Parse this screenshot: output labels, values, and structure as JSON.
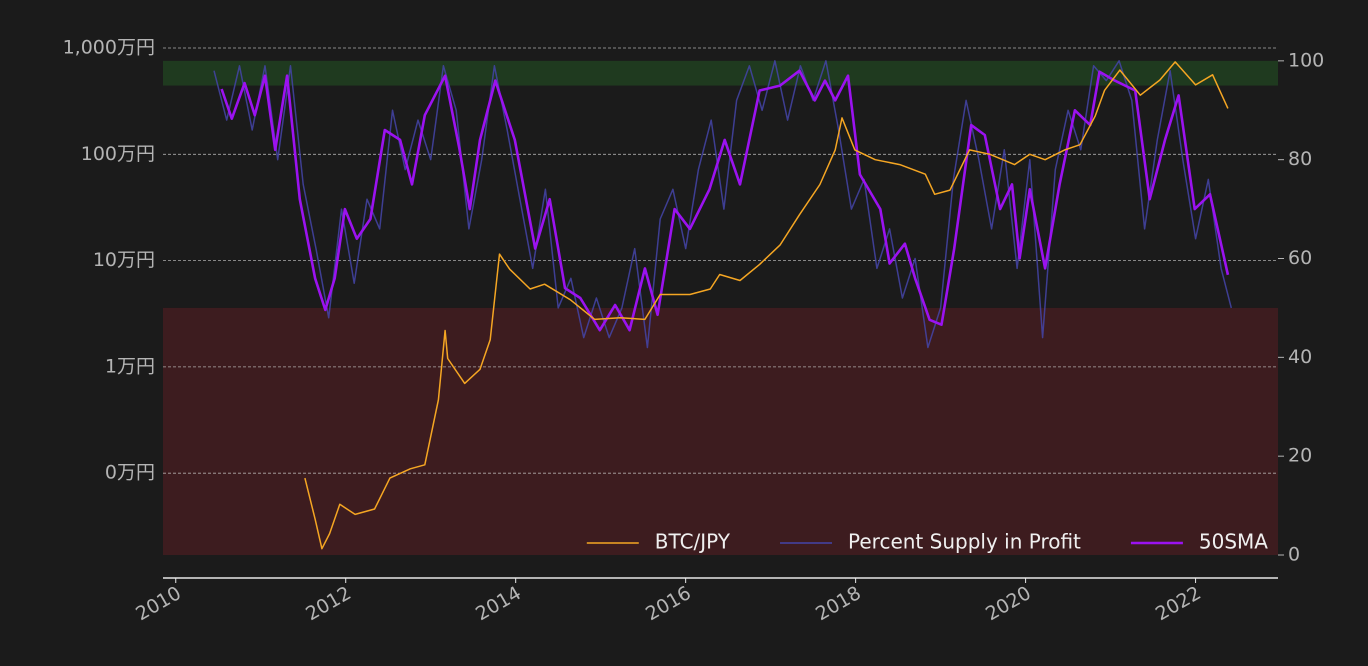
{
  "chart_data": {
    "type": "line",
    "ylog": true,
    "xlim": [
      2009.85,
      2022.97
    ],
    "xticks": [
      2010,
      2012,
      2014,
      2016,
      2018,
      2020,
      2022
    ],
    "ylim": [
      170,
      10000000
    ],
    "yticks": [
      {
        "value": 10000000,
        "label": "1,000万円"
      },
      {
        "value": 1000000,
        "label": "100万円"
      },
      {
        "value": 100000,
        "label": "10万円"
      },
      {
        "value": 10000,
        "label": "1万円"
      },
      {
        "value": 1000,
        "label": "0万円"
      }
    ],
    "y2lim": [
      0,
      102.6
    ],
    "y2ticks": [
      0,
      20,
      40,
      60,
      80,
      100
    ],
    "grid": true,
    "legend": "lower right",
    "bands": [
      {
        "y2range": [
          95,
          100
        ],
        "color": "#1f3a1f"
      },
      {
        "y2range": [
          0,
          50
        ],
        "color": "#3d1c1f"
      }
    ],
    "series": [
      {
        "name": "BTC/JPY",
        "color": "#f5a623",
        "width": 1.5,
        "x": [
          2011.52,
          2011.64,
          2011.72,
          2011.81,
          2011.93,
          2012.11,
          2012.34,
          2012.52,
          2012.76,
          2012.93,
          2013.09,
          2013.17,
          2013.2,
          2013.4,
          2013.58,
          2013.7,
          2013.81,
          2013.93,
          2014.17,
          2014.34,
          2014.64,
          2014.93,
          2015.23,
          2015.52,
          2015.7,
          2016.05,
          2016.29,
          2016.4,
          2016.64,
          2016.87,
          2017.11,
          2017.34,
          2017.58,
          2017.76,
          2017.84,
          2017.99,
          2018.23,
          2018.52,
          2018.82,
          2018.93,
          2019.11,
          2019.34,
          2019.58,
          2019.87,
          2020.05,
          2020.23,
          2020.46,
          2020.64,
          2020.82,
          2020.93,
          2021.11,
          2021.35,
          2021.58,
          2021.76,
          2022.0,
          2022.2,
          2022.38
        ],
        "values": [
          900,
          370,
          195,
          270,
          510,
          410,
          460,
          900,
          1100,
          1200,
          4900,
          22000,
          12000,
          7000,
          9500,
          18000,
          115000,
          83000,
          54000,
          60000,
          43000,
          28000,
          29000,
          28000,
          48000,
          48000,
          54000,
          74000,
          65000,
          92000,
          140000,
          270000,
          520000,
          1100000,
          2200000,
          1100000,
          890000,
          800000,
          650000,
          420000,
          460000,
          1100000,
          1000000,
          800000,
          1000000,
          890000,
          1100000,
          1230000,
          2300000,
          4000000,
          6200000,
          3600000,
          5000000,
          7400000,
          4500000,
          5600000,
          2700000
        ]
      },
      {
        "name": "Percent Supply in Profit",
        "color": "#4444a8",
        "width": 1.5,
        "axis": "y2",
        "x": [
          2010.45,
          2010.6,
          2010.75,
          2010.9,
          2011.05,
          2011.2,
          2011.35,
          2011.5,
          2011.65,
          2011.8,
          2011.95,
          2012.1,
          2012.25,
          2012.4,
          2012.55,
          2012.7,
          2012.85,
          2013.0,
          2013.15,
          2013.3,
          2013.45,
          2013.6,
          2013.75,
          2013.9,
          2014.05,
          2014.2,
          2014.35,
          2014.5,
          2014.65,
          2014.8,
          2014.95,
          2015.1,
          2015.25,
          2015.4,
          2015.55,
          2015.7,
          2015.85,
          2016.0,
          2016.15,
          2016.3,
          2016.45,
          2016.6,
          2016.75,
          2016.9,
          2017.05,
          2017.2,
          2017.35,
          2017.5,
          2017.65,
          2017.8,
          2017.95,
          2018.1,
          2018.25,
          2018.4,
          2018.55,
          2018.7,
          2018.85,
          2019.0,
          2019.15,
          2019.3,
          2019.45,
          2019.6,
          2019.75,
          2019.9,
          2020.05,
          2020.2,
          2020.35,
          2020.5,
          2020.65,
          2020.8,
          2020.95,
          2021.1,
          2021.25,
          2021.4,
          2021.55,
          2021.7,
          2021.85,
          2022.0,
          2022.15,
          2022.3,
          2022.42
        ],
        "values": [
          98,
          88,
          99,
          86,
          99,
          80,
          99,
          75,
          62,
          48,
          70,
          55,
          72,
          66,
          90,
          78,
          88,
          80,
          99,
          90,
          66,
          80,
          99,
          86,
          72,
          58,
          74,
          50,
          56,
          44,
          52,
          44,
          50,
          62,
          42,
          68,
          74,
          62,
          78,
          88,
          70,
          92,
          99,
          90,
          100,
          88,
          99,
          92,
          100,
          86,
          70,
          76,
          58,
          66,
          52,
          60,
          42,
          50,
          76,
          92,
          80,
          66,
          82,
          58,
          80,
          44,
          78,
          90,
          82,
          99,
          96,
          100,
          92,
          66,
          84,
          98,
          80,
          64,
          76,
          58,
          50
        ]
      },
      {
        "name": "50SMA",
        "color": "#9b12f0",
        "width": 2.6,
        "axis": "y2",
        "x": [
          2010.54,
          2010.66,
          2010.81,
          2010.93,
          2011.05,
          2011.17,
          2011.31,
          2011.46,
          2011.64,
          2011.76,
          2011.87,
          2011.99,
          2012.13,
          2012.29,
          2012.46,
          2012.64,
          2012.78,
          2012.93,
          2013.17,
          2013.34,
          2013.46,
          2013.58,
          2013.76,
          2013.99,
          2014.23,
          2014.4,
          2014.58,
          2014.76,
          2014.99,
          2015.17,
          2015.34,
          2015.52,
          2015.67,
          2015.87,
          2016.05,
          2016.28,
          2016.46,
          2016.64,
          2016.87,
          2017.11,
          2017.34,
          2017.52,
          2017.64,
          2017.76,
          2017.91,
          2018.05,
          2018.29,
          2018.4,
          2018.58,
          2018.7,
          2018.87,
          2019.01,
          2019.16,
          2019.36,
          2019.52,
          2019.7,
          2019.84,
          2019.93,
          2020.05,
          2020.23,
          2020.4,
          2020.58,
          2020.76,
          2020.87,
          2021.05,
          2021.29,
          2021.46,
          2021.64,
          2021.8,
          2021.99,
          2022.17,
          2022.38
        ],
        "values": [
          94.3,
          88.3,
          95.5,
          89,
          97,
          82,
          97,
          72,
          56,
          49.6,
          56,
          70,
          64,
          68,
          86,
          84,
          75,
          89,
          97,
          82,
          70,
          84,
          96,
          84,
          62,
          72,
          54,
          52,
          45.5,
          50.6,
          45.5,
          58,
          48.6,
          70,
          66,
          74,
          84,
          75,
          94,
          95,
          98,
          92,
          96,
          92,
          97,
          77,
          70,
          59,
          63,
          56,
          47.6,
          46.6,
          62,
          87,
          85,
          70,
          75,
          60,
          74,
          58,
          75,
          90,
          87,
          97.8,
          96,
          94,
          72,
          84,
          93,
          70,
          73,
          56.7
        ]
      }
    ]
  }
}
